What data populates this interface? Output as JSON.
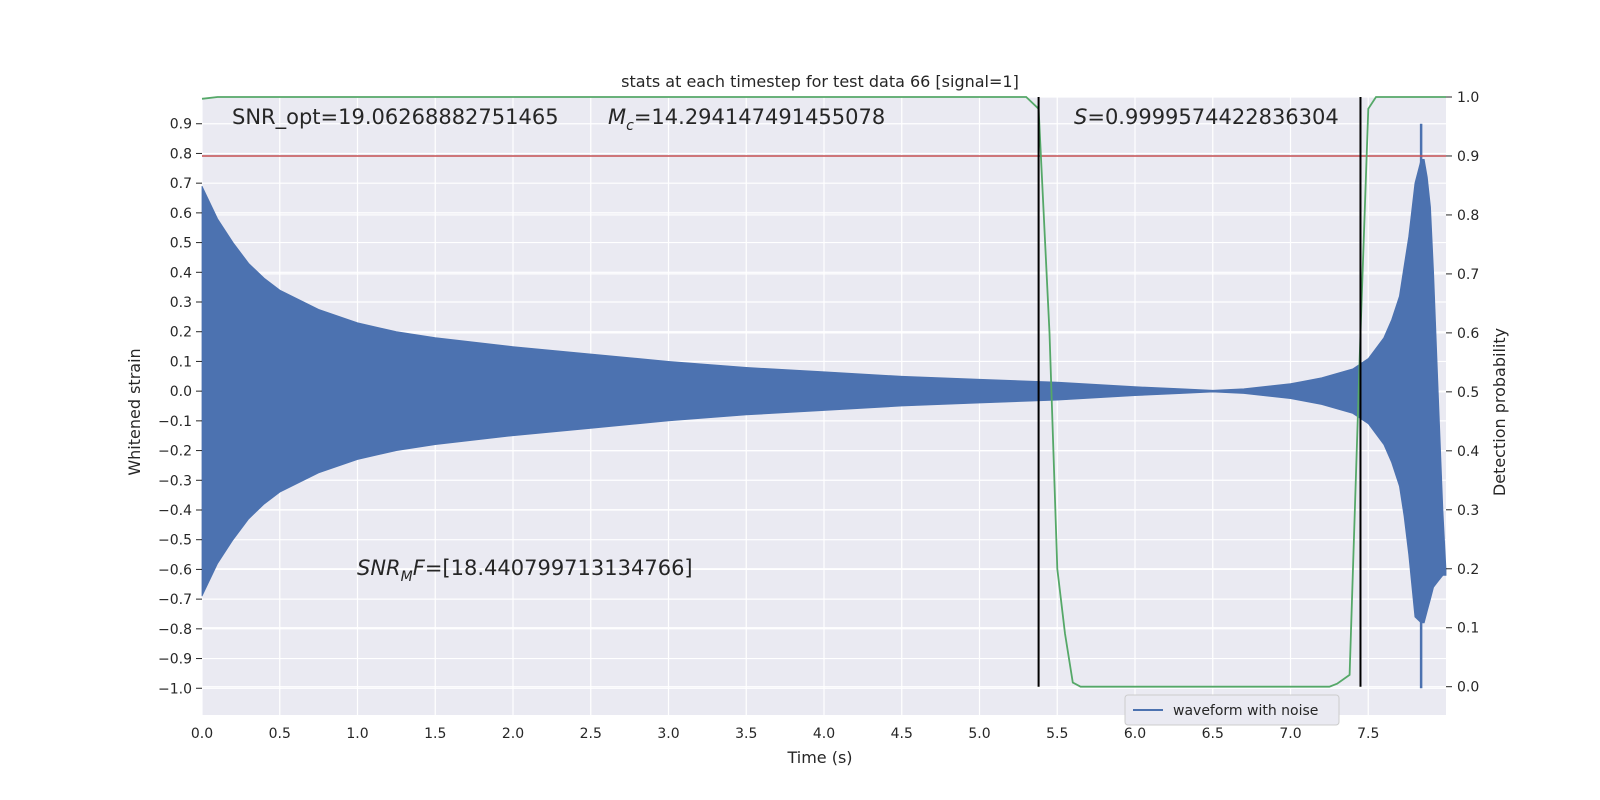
{
  "chart_data": {
    "type": "line",
    "title": "stats at each timestep for test data 66 [signal=1]",
    "xlabel": "Time (s)",
    "ylabel": "Whitened strain",
    "y2label": "Detection probability",
    "xlim": [
      0.0,
      8.0
    ],
    "ylim": [
      -1.09,
      0.99
    ],
    "y2lim": [
      -0.048,
      1.0
    ],
    "xticks": [
      "0.0",
      "0.5",
      "1.0",
      "1.5",
      "2.0",
      "2.5",
      "3.0",
      "3.5",
      "4.0",
      "4.5",
      "5.0",
      "5.5",
      "6.0",
      "6.5",
      "7.0",
      "7.5"
    ],
    "yticks": [
      "0.9",
      "0.8",
      "0.7",
      "0.6",
      "0.5",
      "0.4",
      "0.3",
      "0.2",
      "0.1",
      "0.0",
      "−0.1",
      "−0.2",
      "−0.3",
      "−0.4",
      "−0.5",
      "−0.6",
      "−0.7",
      "−0.8",
      "−0.9",
      "−1.0"
    ],
    "y2ticks": [
      "1.0",
      "0.9",
      "0.8",
      "0.7",
      "0.6",
      "0.5",
      "0.4",
      "0.3",
      "0.2",
      "0.1",
      "0.0"
    ],
    "grid": true,
    "background": "#eaeaf2",
    "legend": {
      "placement": "bottom-right",
      "entries": [
        "waveform with noise"
      ]
    },
    "annotations": {
      "snr_opt": "SNR_opt=19.06268882751465",
      "mc_symbol": "M",
      "mc_sub": "c",
      "mc_value": "=14.294147491455078",
      "s_symbol": "S",
      "s_value": "=0.9999574422836304",
      "snrmf_a": "SNR",
      "snrmf_sub": "M",
      "snrmf_b": "F",
      "snrmf_value": "=[18.440799713134766]"
    },
    "series": [
      {
        "name": "waveform with noise",
        "axis": "left",
        "color": "#4c72b0",
        "envelope": {
          "t": [
            0.0,
            0.1,
            0.2,
            0.3,
            0.4,
            0.5,
            0.75,
            1.0,
            1.25,
            1.5,
            2.0,
            2.5,
            3.0,
            3.5,
            4.0,
            4.5,
            5.0,
            5.5,
            6.0,
            6.3,
            6.5,
            6.7,
            7.0,
            7.2,
            7.4,
            7.5,
            7.6,
            7.65,
            7.7,
            7.73,
            7.76,
            7.8,
            7.84
          ],
          "upper": [
            0.69,
            0.58,
            0.5,
            0.43,
            0.38,
            0.34,
            0.275,
            0.23,
            0.2,
            0.18,
            0.15,
            0.125,
            0.1,
            0.08,
            0.065,
            0.05,
            0.04,
            0.03,
            0.015,
            0.008,
            0.003,
            0.008,
            0.025,
            0.045,
            0.075,
            0.11,
            0.18,
            0.24,
            0.32,
            0.42,
            0.52,
            0.7,
            0.78
          ],
          "lower": [
            -0.69,
            -0.58,
            -0.5,
            -0.43,
            -0.38,
            -0.34,
            -0.275,
            -0.23,
            -0.2,
            -0.18,
            -0.15,
            -0.125,
            -0.1,
            -0.08,
            -0.065,
            -0.05,
            -0.04,
            -0.03,
            -0.015,
            -0.008,
            -0.003,
            -0.008,
            -0.025,
            -0.045,
            -0.075,
            -0.11,
            -0.18,
            -0.24,
            -0.32,
            -0.42,
            -0.55,
            -0.76,
            -0.78
          ]
        },
        "ringdown": {
          "t": [
            7.84,
            7.86,
            7.88,
            7.9,
            7.92,
            7.95,
            7.98,
            8.0
          ],
          "upper": [
            0.78,
            0.78,
            0.72,
            0.62,
            0.4,
            0.0,
            -0.4,
            -0.6
          ],
          "lower": [
            -0.78,
            -0.78,
            -0.74,
            -0.7,
            -0.66,
            -0.64,
            -0.62,
            -0.62
          ]
        },
        "spike": {
          "t": 7.84,
          "from": -1.0,
          "to": 0.9
        }
      },
      {
        "axis": "right",
        "color": "#55a868",
        "x": [
          0.0,
          0.1,
          1.0,
          2.0,
          3.0,
          4.0,
          5.0,
          5.3,
          5.38,
          5.45,
          5.5,
          5.55,
          5.6,
          5.65,
          5.7,
          6.0,
          6.5,
          7.0,
          7.25,
          7.3,
          7.38,
          7.45,
          7.5,
          7.55,
          7.6,
          8.0
        ],
        "y": [
          0.997,
          1.0,
          1.0,
          1.0,
          1.0,
          1.0,
          1.0,
          1.0,
          0.98,
          0.6,
          0.2,
          0.09,
          0.007,
          0.0,
          0.0,
          0.0,
          0.0,
          0.0,
          0.0,
          0.005,
          0.02,
          0.6,
          0.98,
          1.0,
          1.0,
          1.0
        ]
      }
    ],
    "threshold": {
      "axis": "right",
      "value": 0.9,
      "color": "#c44e52"
    },
    "vlines": {
      "x": [
        5.38,
        7.45
      ],
      "color": "#000000"
    }
  }
}
